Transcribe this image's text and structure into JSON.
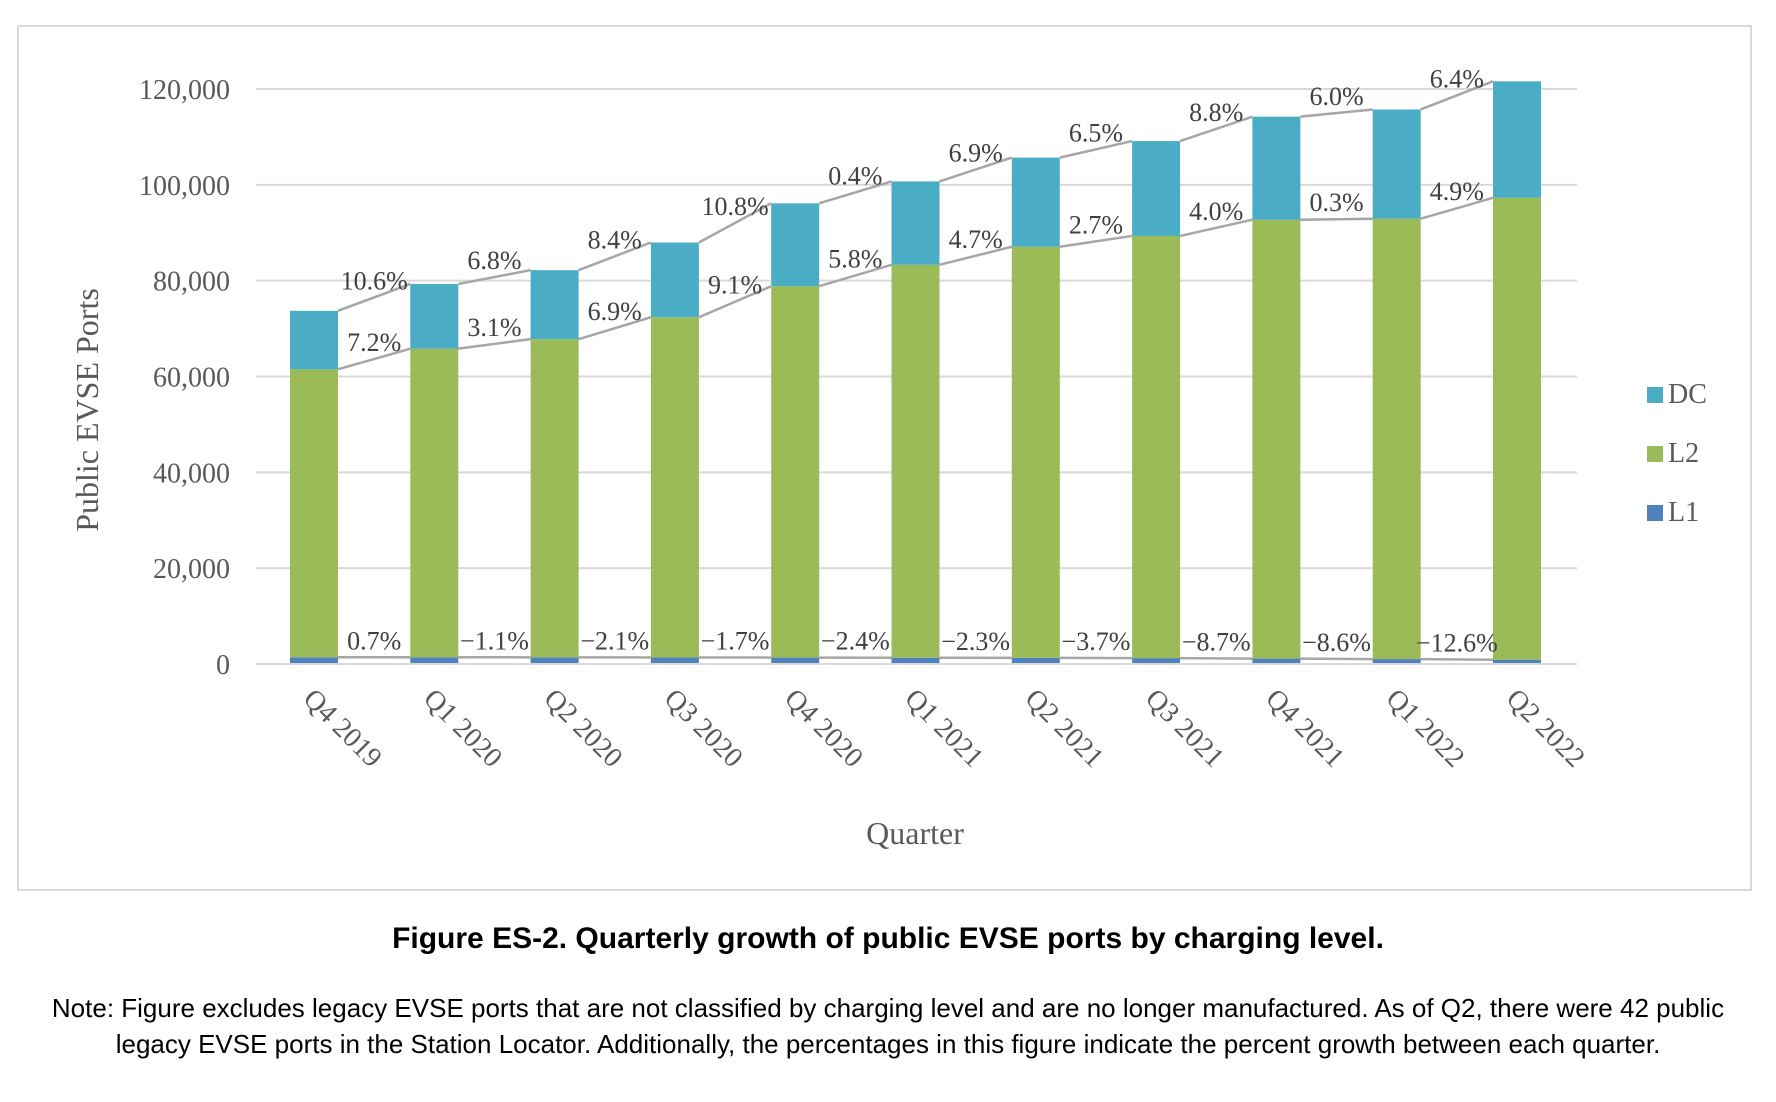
{
  "chart_data": {
    "type": "bar",
    "stacked": true,
    "title": "",
    "xlabel": "Quarter",
    "ylabel": "Public EVSE Ports",
    "ylim": [
      0,
      120000
    ],
    "yticks": [
      0,
      20000,
      40000,
      60000,
      80000,
      100000,
      120000
    ],
    "ytick_labels": [
      "0",
      "20,000",
      "40,000",
      "60,000",
      "80,000",
      "100,000",
      "120,000"
    ],
    "grid": true,
    "legend_position": "right",
    "categories": [
      "Q4 2019",
      "Q1 2020",
      "Q2 2020",
      "Q3 2020",
      "Q4 2020",
      "Q1 2021",
      "Q2 2021",
      "Q3 2021",
      "Q4 2021",
      "Q1 2022",
      "Q2 2022"
    ],
    "series": [
      {
        "name": "L1",
        "color": "#4f81bd",
        "values": [
          1400,
          1410,
          1394,
          1365,
          1342,
          1310,
          1280,
          1232,
          1125,
          1028,
          899
        ]
      },
      {
        "name": "L2",
        "color": "#9bbb59",
        "values": [
          60100,
          64400,
          66400,
          71000,
          77500,
          82000,
          85800,
          88100,
          91600,
          91900,
          96400
        ]
      },
      {
        "name": "DC",
        "color": "#4bacc6",
        "values": [
          12200,
          13500,
          14400,
          15600,
          17300,
          17400,
          18600,
          19800,
          21500,
          22800,
          24300
        ]
      }
    ],
    "legend_order": [
      "DC",
      "L2",
      "L1"
    ],
    "growth_labels": {
      "DC": [
        "10.6%",
        "6.8%",
        "8.4%",
        "10.8%",
        "0.4%",
        "6.9%",
        "6.5%",
        "8.8%",
        "6.0%",
        "6.4%"
      ],
      "L2": [
        "7.2%",
        "3.1%",
        "6.9%",
        "9.1%",
        "5.8%",
        "4.7%",
        "2.7%",
        "4.0%",
        "0.3%",
        "4.9%"
      ],
      "L1": [
        "0.7%",
        "−1.1%",
        "−2.1%",
        "−1.7%",
        "−2.4%",
        "−2.3%",
        "−3.7%",
        "−8.7%",
        "−8.6%",
        "−12.6%"
      ]
    },
    "connector_color": "#a6a6a6"
  },
  "caption": "Figure ES-2. Quarterly growth of public EVSE ports by charging level.",
  "note": "Note: Figure excludes legacy EVSE ports that are not classified by charging level and are no longer manufactured. As of Q2, there were 42 public legacy EVSE ports in the Station Locator. Additionally, the percentages in this figure indicate the percent growth between each quarter."
}
